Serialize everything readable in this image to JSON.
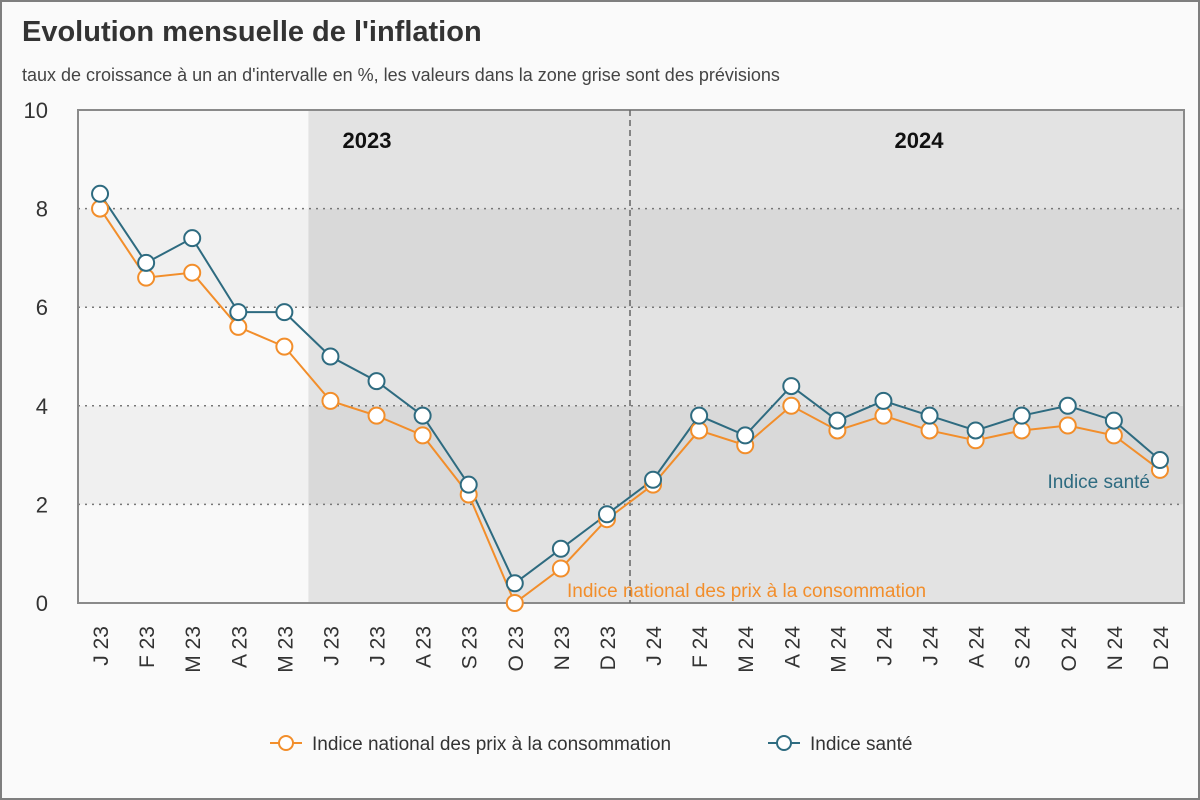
{
  "title": "Evolution mensuelle de l'inflation",
  "subtitle": "taux de croissance à un an d'intervalle en %, les valeurs dans la zone grise sont des prévisions",
  "colors": {
    "cpi": "#f28e2b",
    "health": "#2e6b80",
    "grid": "#777777"
  },
  "chart_data": {
    "type": "line",
    "title": "Evolution mensuelle de l'inflation",
    "subtitle": "taux de croissance à un an d'intervalle en %, les valeurs dans la zone grise sont des prévisions",
    "xlabel": "",
    "ylabel": "",
    "ylim": [
      0,
      10
    ],
    "yticks": [
      0,
      2,
      4,
      6,
      8,
      10
    ],
    "grid": true,
    "legend_position": "bottom",
    "categories": [
      "J 23",
      "F 23",
      "M 23",
      "A 23",
      "M 23",
      "J 23",
      "J 23",
      "A 23",
      "S 23",
      "O 23",
      "N 23",
      "D 23",
      "J 24",
      "F 24",
      "M 24",
      "A 24",
      "M 24",
      "J 24",
      "J 24",
      "A 24",
      "S 24",
      "O 24",
      "N 24",
      "D 24"
    ],
    "period_labels": [
      {
        "label": "2023",
        "start_index": 0
      },
      {
        "label": "2024",
        "start_index": 12
      }
    ],
    "forecast_start_index": 5,
    "series": [
      {
        "name": "Indice national des prix à la consommation",
        "color_key": "cpi",
        "values": [
          8.0,
          6.6,
          6.7,
          5.6,
          5.2,
          4.1,
          3.8,
          3.4,
          2.2,
          0.0,
          0.7,
          1.7,
          2.4,
          3.5,
          3.2,
          4.0,
          3.5,
          3.8,
          3.5,
          3.3,
          3.5,
          3.6,
          3.4,
          2.7
        ]
      },
      {
        "name": "Indice santé",
        "color_key": "health",
        "values": [
          8.3,
          6.9,
          7.4,
          5.9,
          5.9,
          5.0,
          4.5,
          3.8,
          2.4,
          0.4,
          1.1,
          1.8,
          2.5,
          3.8,
          3.4,
          4.4,
          3.7,
          4.1,
          3.8,
          3.5,
          3.8,
          4.0,
          3.7,
          2.9
        ]
      }
    ],
    "annotations": [
      {
        "text": "Indice national des prix à la consommation",
        "series": 0
      },
      {
        "text": "Indice santé",
        "series": 1
      }
    ]
  }
}
